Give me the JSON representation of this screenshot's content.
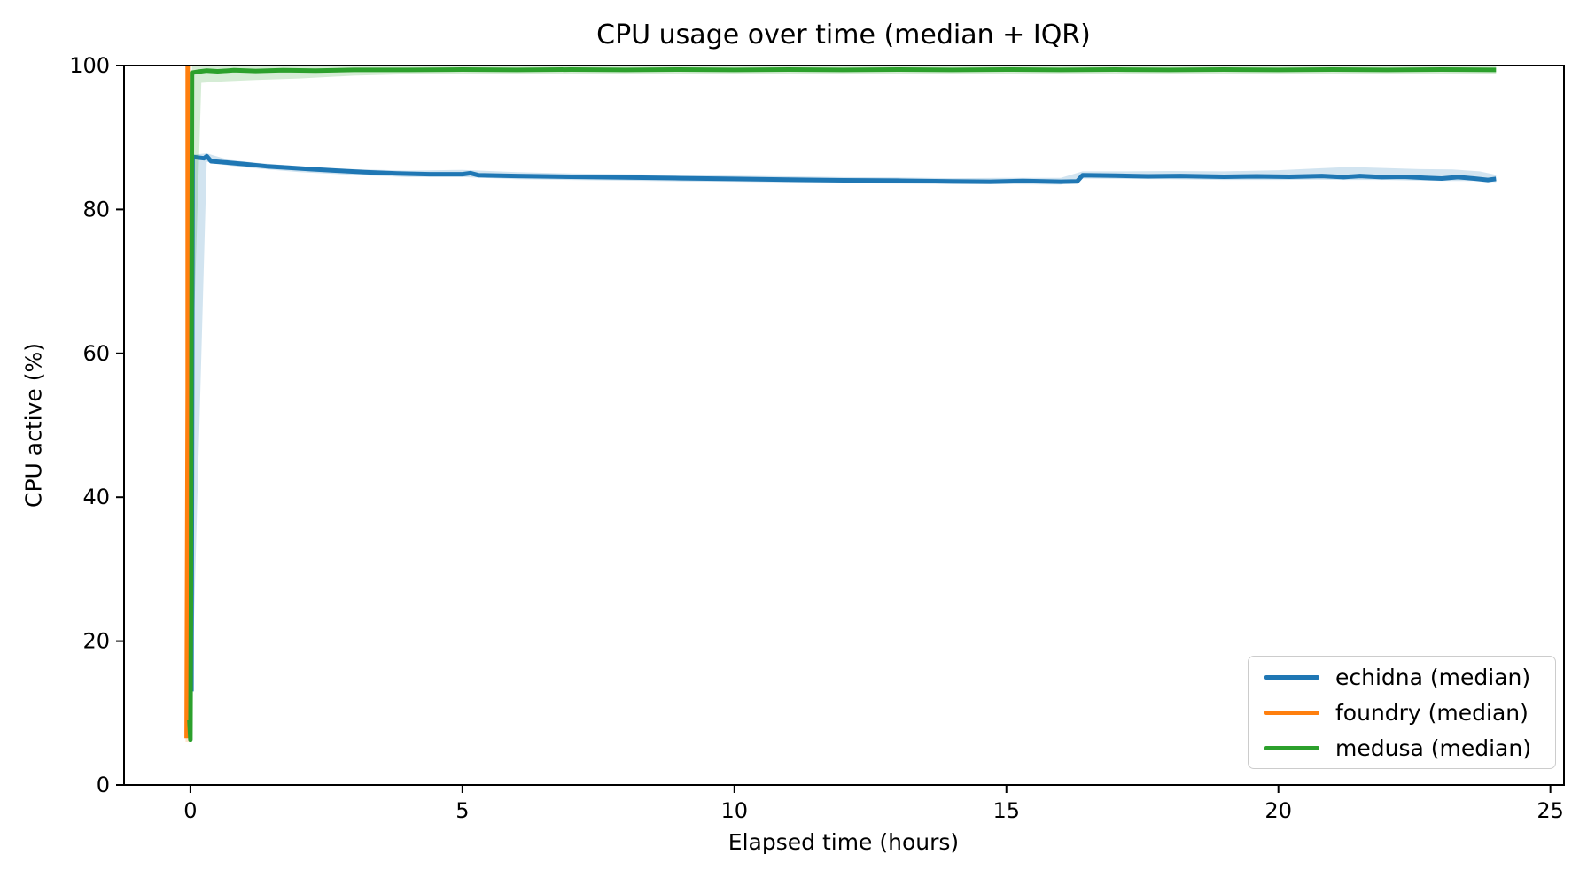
{
  "chart_data": {
    "type": "line",
    "title": "CPU usage over time (median + IQR)",
    "xlabel": "Elapsed time (hours)",
    "ylabel": "CPU active (%)",
    "xlim": [
      -1.22,
      25.25
    ],
    "ylim": [
      0,
      100
    ],
    "xticks": [
      0,
      5,
      10,
      15,
      20,
      25
    ],
    "yticks": [
      0,
      20,
      40,
      60,
      80,
      100
    ],
    "grid": false,
    "legend_position": "lower right",
    "series": [
      {
        "name": "echidna (median)",
        "color": "#1f77b4",
        "points": [
          [
            0.02,
            13
          ],
          [
            0.04,
            87.3
          ],
          [
            0.25,
            87.1
          ],
          [
            0.3,
            87.4
          ],
          [
            0.38,
            86.7
          ],
          [
            0.7,
            86.5
          ],
          [
            1.0,
            86.3
          ],
          [
            1.4,
            86.0
          ],
          [
            1.8,
            85.8
          ],
          [
            2.2,
            85.6
          ],
          [
            2.7,
            85.4
          ],
          [
            3.2,
            85.2
          ],
          [
            3.8,
            85.0
          ],
          [
            4.4,
            84.9
          ],
          [
            5.0,
            84.9
          ],
          [
            5.15,
            85.05
          ],
          [
            5.3,
            84.75
          ],
          [
            6.0,
            84.65
          ],
          [
            7.0,
            84.55
          ],
          [
            8.0,
            84.45
          ],
          [
            9.0,
            84.35
          ],
          [
            10.0,
            84.25
          ],
          [
            11.0,
            84.15
          ],
          [
            12.0,
            84.05
          ],
          [
            13.0,
            84.0
          ],
          [
            14.0,
            83.9
          ],
          [
            14.7,
            83.85
          ],
          [
            15.3,
            83.95
          ],
          [
            16.0,
            83.85
          ],
          [
            16.3,
            83.9
          ],
          [
            16.4,
            84.75
          ],
          [
            17.0,
            84.7
          ],
          [
            17.6,
            84.6
          ],
          [
            18.2,
            84.65
          ],
          [
            19.0,
            84.55
          ],
          [
            19.6,
            84.6
          ],
          [
            20.2,
            84.55
          ],
          [
            20.8,
            84.65
          ],
          [
            21.2,
            84.5
          ],
          [
            21.5,
            84.65
          ],
          [
            21.9,
            84.5
          ],
          [
            22.3,
            84.55
          ],
          [
            22.7,
            84.4
          ],
          [
            23.0,
            84.3
          ],
          [
            23.3,
            84.5
          ],
          [
            23.6,
            84.3
          ],
          [
            23.85,
            84.1
          ],
          [
            24.0,
            84.25
          ]
        ],
        "iqr_band": [
          [
            0.03,
            13,
            87.6
          ],
          [
            0.3,
            86.6,
            87.8
          ],
          [
            0.7,
            86.1,
            86.9
          ],
          [
            1.2,
            85.7,
            86.5
          ],
          [
            2,
            85.2,
            86.0
          ],
          [
            3,
            84.8,
            85.6
          ],
          [
            4,
            84.5,
            85.4
          ],
          [
            5,
            84.5,
            85.5
          ],
          [
            6,
            84.2,
            85.2
          ],
          [
            7,
            84.1,
            85.0
          ],
          [
            8,
            84.0,
            84.9
          ],
          [
            9,
            83.9,
            84.8
          ],
          [
            10,
            83.85,
            84.7
          ],
          [
            11,
            83.75,
            84.6
          ],
          [
            12,
            83.65,
            84.5
          ],
          [
            13,
            83.6,
            84.45
          ],
          [
            14,
            83.5,
            84.35
          ],
          [
            15,
            83.5,
            84.4
          ],
          [
            16,
            83.45,
            84.4
          ],
          [
            16.4,
            84.3,
            85.3
          ],
          [
            17,
            84.25,
            85.3
          ],
          [
            18,
            84.2,
            85.35
          ],
          [
            19,
            84.1,
            85.3
          ],
          [
            20,
            84.1,
            85.45
          ],
          [
            20.7,
            84.15,
            85.7
          ],
          [
            21.3,
            84.1,
            85.9
          ],
          [
            22,
            84.1,
            85.75
          ],
          [
            22.6,
            84.0,
            85.6
          ],
          [
            23.2,
            83.95,
            85.55
          ],
          [
            23.7,
            83.95,
            85.3
          ],
          [
            24,
            83.8,
            84.8
          ]
        ]
      },
      {
        "name": "foundry (median)",
        "color": "#ff7f0e",
        "points": [
          [
            -0.07,
            6.5
          ],
          [
            -0.05,
            55
          ],
          [
            -0.05,
            100
          ]
        ],
        "iqr_band": [
          [
            -0.09,
            6,
            100
          ],
          [
            -0.03,
            6,
            100
          ]
        ]
      },
      {
        "name": "medusa (median)",
        "color": "#2ca02c",
        "points": [
          [
            -0.02,
            9
          ],
          [
            0.0,
            6.3
          ],
          [
            0.01,
            25
          ],
          [
            0.03,
            99.0
          ],
          [
            0.15,
            99.15
          ],
          [
            0.3,
            99.3
          ],
          [
            0.5,
            99.2
          ],
          [
            0.8,
            99.35
          ],
          [
            1.2,
            99.25
          ],
          [
            1.7,
            99.35
          ],
          [
            2.3,
            99.3
          ],
          [
            3.0,
            99.4
          ],
          [
            4,
            99.4
          ],
          [
            5,
            99.45
          ],
          [
            6,
            99.4
          ],
          [
            7,
            99.45
          ],
          [
            8,
            99.4
          ],
          [
            9,
            99.45
          ],
          [
            10,
            99.4
          ],
          [
            11,
            99.45
          ],
          [
            12,
            99.4
          ],
          [
            13,
            99.45
          ],
          [
            14,
            99.4
          ],
          [
            15,
            99.45
          ],
          [
            16,
            99.4
          ],
          [
            17,
            99.45
          ],
          [
            18,
            99.4
          ],
          [
            19,
            99.45
          ],
          [
            20,
            99.4
          ],
          [
            21,
            99.45
          ],
          [
            22,
            99.4
          ],
          [
            23,
            99.45
          ],
          [
            24,
            99.4
          ]
        ],
        "iqr_band": [
          [
            0.03,
            55,
            100
          ],
          [
            0.2,
            97.6,
            100
          ],
          [
            0.6,
            97.8,
            100
          ],
          [
            1.2,
            98.0,
            100
          ],
          [
            2,
            98.2,
            100
          ],
          [
            3,
            98.6,
            100
          ],
          [
            4,
            98.8,
            100
          ],
          [
            6,
            98.85,
            100
          ],
          [
            10,
            98.85,
            100
          ],
          [
            16,
            98.85,
            100
          ],
          [
            20,
            98.85,
            100
          ],
          [
            24,
            98.85,
            100
          ]
        ]
      }
    ]
  }
}
